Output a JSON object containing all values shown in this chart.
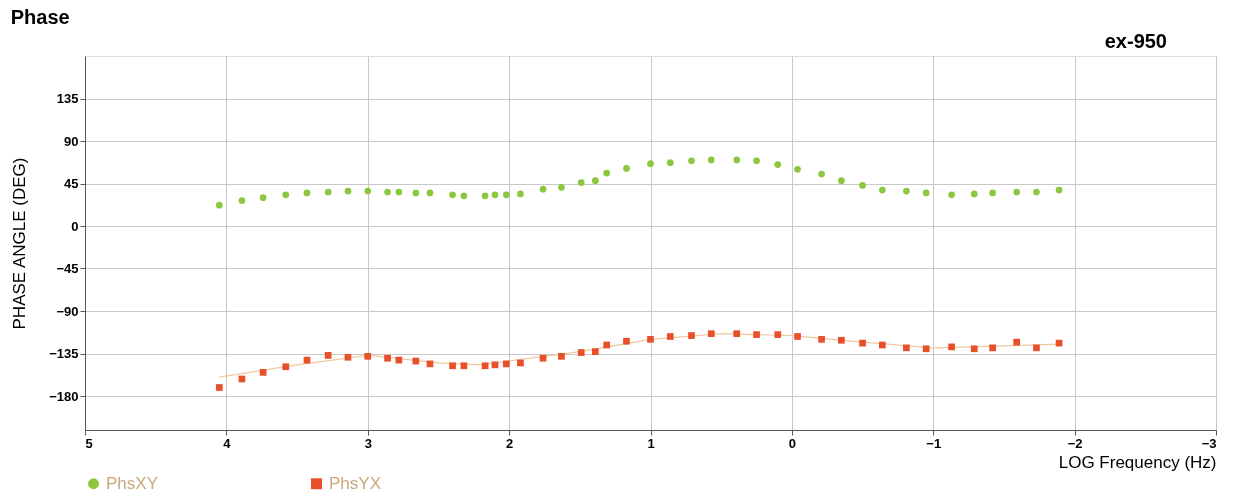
{
  "chart_data": {
    "type": "scatter",
    "title": "Phase",
    "xlabel": "LOG Frequency (Hz)",
    "ylabel": "PHASE ANGLE (DEG)",
    "annotations": [
      "ex-950"
    ],
    "xlim": [
      5,
      -3
    ],
    "xticks": [
      5,
      4,
      3,
      2,
      1,
      0,
      -1,
      -2,
      -3
    ],
    "ylim": [
      -216,
      180
    ],
    "yticks": [
      135,
      90,
      45,
      0,
      -45,
      -90,
      -135,
      -180
    ],
    "grid": true,
    "legend": "bottom",
    "series": [
      {
        "name": "PhsXY",
        "color": "#8dc63f",
        "marker": "circle",
        "x": [
          4.05,
          3.89,
          3.74,
          3.58,
          3.43,
          3.28,
          3.14,
          3.0,
          2.86,
          2.78,
          2.66,
          2.56,
          2.4,
          2.32,
          2.17,
          2.1,
          2.02,
          1.92,
          1.76,
          1.63,
          1.49,
          1.39,
          1.31,
          1.17,
          1.0,
          0.86,
          0.71,
          0.57,
          0.39,
          0.25,
          0.1,
          -0.04,
          -0.21,
          -0.35,
          -0.5,
          -0.64,
          -0.81,
          -0.95,
          -1.13,
          -1.29,
          -1.42,
          -1.59,
          -1.73,
          -1.89
        ],
        "values": [
          22,
          27,
          30,
          33,
          35,
          36,
          37,
          37,
          36,
          36,
          35,
          35,
          33,
          32,
          32,
          33,
          33,
          34,
          39,
          41,
          46,
          48,
          56,
          61,
          66,
          67,
          69,
          70,
          70,
          69,
          65,
          60,
          55,
          48,
          43,
          38,
          37,
          35,
          33,
          34,
          35,
          36,
          36,
          38
        ]
      },
      {
        "name": "PhsYX",
        "color": "#e8502a",
        "marker": "square",
        "x": [
          4.05,
          3.89,
          3.74,
          3.58,
          3.43,
          3.28,
          3.14,
          3.0,
          2.86,
          2.78,
          2.66,
          2.56,
          2.4,
          2.32,
          2.17,
          2.1,
          2.02,
          1.92,
          1.76,
          1.63,
          1.49,
          1.39,
          1.31,
          1.17,
          1.0,
          0.86,
          0.71,
          0.57,
          0.39,
          0.25,
          0.1,
          -0.04,
          -0.21,
          -0.35,
          -0.5,
          -0.64,
          -0.81,
          -0.95,
          -1.13,
          -1.29,
          -1.42,
          -1.59,
          -1.73,
          -1.89
        ],
        "values": [
          -171,
          -162,
          -155,
          -149,
          -142,
          -137,
          -139,
          -138,
          -140,
          -142,
          -143,
          -146,
          -148,
          -148,
          -148,
          -147,
          -146,
          -145,
          -140,
          -138,
          -134,
          -133,
          -126,
          -122,
          -120,
          -117,
          -116,
          -114,
          -114,
          -115,
          -115,
          -117,
          -120,
          -121,
          -124,
          -126,
          -129,
          -130,
          -128,
          -130,
          -129,
          -123,
          -129,
          -124
        ]
      },
      {
        "type": "line",
        "color": "#f0c8a0",
        "line_style": "solid",
        "x": [
          4.05,
          3.5,
          3.0,
          2.5,
          2.2,
          1.5,
          1.0,
          0.5,
          0.0,
          -0.5,
          -1.0,
          -1.5,
          -1.89
        ],
        "values": [
          -160,
          -147,
          -137,
          -145,
          -147,
          -133,
          -120,
          -114,
          -116,
          -123,
          -129,
          -127,
          -125
        ]
      }
    ]
  }
}
